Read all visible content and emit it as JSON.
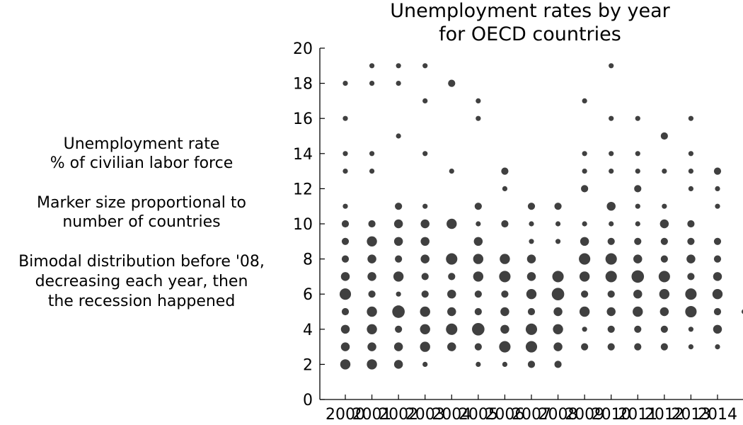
{
  "annotations": {
    "line1": "Unemployment rate",
    "line2": "% of civilian labor force",
    "line3": "Marker size proportional to",
    "line4": "number of countries",
    "line5": "Bimodal distribution before '08,",
    "line6": "decreasing each year, then",
    "line7": "the recession happened"
  },
  "chart_data": {
    "type": "scatter",
    "title_lines": [
      "Unemployment rates by year",
      "for OECD countries"
    ],
    "xlabel": "",
    "ylabel": "",
    "ylim": [
      0,
      20
    ],
    "y_ticks": [
      0,
      2,
      4,
      6,
      8,
      10,
      12,
      14,
      16,
      18,
      20
    ],
    "x_ticks": [
      2000,
      2001,
      2002,
      2003,
      2004,
      2005,
      2006,
      2007,
      2008,
      2009,
      2010,
      2011,
      2012,
      2013,
      2014
    ],
    "grid": false,
    "marker_color": "#404040",
    "size_meaning": "number of countries",
    "points": [
      [
        2000,
        18,
        1
      ],
      [
        2000,
        16,
        1
      ],
      [
        2000,
        14,
        1
      ],
      [
        2000,
        13,
        1
      ],
      [
        2000,
        11,
        1
      ],
      [
        2000,
        10,
        2
      ],
      [
        2000,
        9,
        2
      ],
      [
        2000,
        8,
        2
      ],
      [
        2000,
        7,
        3
      ],
      [
        2000,
        6,
        5
      ],
      [
        2000,
        5,
        2
      ],
      [
        2000,
        4,
        3
      ],
      [
        2000,
        3,
        3
      ],
      [
        2000,
        2,
        4
      ],
      [
        2001,
        19,
        1
      ],
      [
        2001,
        18,
        1
      ],
      [
        2001,
        14,
        1
      ],
      [
        2001,
        13,
        1
      ],
      [
        2001,
        10,
        2
      ],
      [
        2001,
        9,
        4
      ],
      [
        2001,
        8,
        3
      ],
      [
        2001,
        7,
        3
      ],
      [
        2001,
        6,
        2
      ],
      [
        2001,
        5,
        4
      ],
      [
        2001,
        4,
        4
      ],
      [
        2001,
        3,
        3
      ],
      [
        2001,
        2,
        4
      ],
      [
        2002,
        19,
        1
      ],
      [
        2002,
        18,
        1
      ],
      [
        2002,
        15,
        1
      ],
      [
        2002,
        11,
        2
      ],
      [
        2002,
        10,
        3
      ],
      [
        2002,
        9,
        3
      ],
      [
        2002,
        8,
        2
      ],
      [
        2002,
        7,
        4
      ],
      [
        2002,
        6,
        1
      ],
      [
        2002,
        5,
        6
      ],
      [
        2002,
        4,
        2
      ],
      [
        2002,
        3,
        3
      ],
      [
        2002,
        2,
        3
      ],
      [
        2003,
        19,
        1
      ],
      [
        2003,
        17,
        1
      ],
      [
        2003,
        14,
        1
      ],
      [
        2003,
        11,
        1
      ],
      [
        2003,
        10,
        3
      ],
      [
        2003,
        9,
        3
      ],
      [
        2003,
        8,
        3
      ],
      [
        2003,
        7,
        2
      ],
      [
        2003,
        6,
        2
      ],
      [
        2003,
        5,
        4
      ],
      [
        2003,
        4,
        4
      ],
      [
        2003,
        3,
        4
      ],
      [
        2003,
        2,
        1
      ],
      [
        2004,
        18,
        2
      ],
      [
        2004,
        13,
        1
      ],
      [
        2004,
        10,
        4
      ],
      [
        2004,
        8,
        5
      ],
      [
        2004,
        7,
        2
      ],
      [
        2004,
        6,
        3
      ],
      [
        2004,
        5,
        3
      ],
      [
        2004,
        4,
        5
      ],
      [
        2004,
        3,
        3
      ],
      [
        2005,
        17,
        1
      ],
      [
        2005,
        16,
        1
      ],
      [
        2005,
        11,
        2
      ],
      [
        2005,
        10,
        1
      ],
      [
        2005,
        9,
        3
      ],
      [
        2005,
        8,
        4
      ],
      [
        2005,
        7,
        4
      ],
      [
        2005,
        6,
        2
      ],
      [
        2005,
        5,
        2
      ],
      [
        2005,
        4,
        6
      ],
      [
        2005,
        3,
        2
      ],
      [
        2005,
        2,
        1
      ],
      [
        2006,
        13,
        2
      ],
      [
        2006,
        12,
        1
      ],
      [
        2006,
        10,
        2
      ],
      [
        2006,
        8,
        4
      ],
      [
        2006,
        7,
        5
      ],
      [
        2006,
        6,
        2
      ],
      [
        2006,
        5,
        3
      ],
      [
        2006,
        4,
        3
      ],
      [
        2006,
        3,
        5
      ],
      [
        2006,
        2,
        1
      ],
      [
        2007,
        11,
        2
      ],
      [
        2007,
        10,
        1
      ],
      [
        2007,
        9,
        1
      ],
      [
        2007,
        8,
        3
      ],
      [
        2007,
        7,
        3
      ],
      [
        2007,
        6,
        4
      ],
      [
        2007,
        5,
        2
      ],
      [
        2007,
        4,
        5
      ],
      [
        2007,
        3,
        5
      ],
      [
        2007,
        2,
        2
      ],
      [
        2008,
        11,
        2
      ],
      [
        2008,
        10,
        1
      ],
      [
        2008,
        9,
        1
      ],
      [
        2008,
        7,
        5
      ],
      [
        2008,
        6,
        6
      ],
      [
        2008,
        5,
        3
      ],
      [
        2008,
        4,
        4
      ],
      [
        2008,
        3,
        3
      ],
      [
        2008,
        2,
        2
      ],
      [
        2009,
        17,
        1
      ],
      [
        2009,
        14,
        1
      ],
      [
        2009,
        13,
        1
      ],
      [
        2009,
        12,
        2
      ],
      [
        2009,
        10,
        1
      ],
      [
        2009,
        9,
        3
      ],
      [
        2009,
        8,
        5
      ],
      [
        2009,
        7,
        4
      ],
      [
        2009,
        6,
        2
      ],
      [
        2009,
        5,
        4
      ],
      [
        2009,
        4,
        1
      ],
      [
        2009,
        3,
        2
      ],
      [
        2010,
        19,
        1
      ],
      [
        2010,
        16,
        1
      ],
      [
        2010,
        14,
        1
      ],
      [
        2010,
        13,
        1
      ],
      [
        2010,
        11,
        3
      ],
      [
        2010,
        10,
        1
      ],
      [
        2010,
        9,
        2
      ],
      [
        2010,
        8,
        5
      ],
      [
        2010,
        7,
        5
      ],
      [
        2010,
        6,
        2
      ],
      [
        2010,
        5,
        3
      ],
      [
        2010,
        4,
        2
      ],
      [
        2010,
        3,
        2
      ],
      [
        2011,
        16,
        1
      ],
      [
        2011,
        14,
        1
      ],
      [
        2011,
        13,
        1
      ],
      [
        2011,
        12,
        2
      ],
      [
        2011,
        11,
        1
      ],
      [
        2011,
        10,
        1
      ],
      [
        2011,
        9,
        2
      ],
      [
        2011,
        8,
        3
      ],
      [
        2011,
        7,
        6
      ],
      [
        2011,
        6,
        3
      ],
      [
        2011,
        5,
        4
      ],
      [
        2011,
        4,
        2
      ],
      [
        2011,
        3,
        2
      ],
      [
        2012,
        15,
        2
      ],
      [
        2012,
        13,
        1
      ],
      [
        2012,
        11,
        1
      ],
      [
        2012,
        10,
        3
      ],
      [
        2012,
        9,
        2
      ],
      [
        2012,
        8,
        2
      ],
      [
        2012,
        7,
        5
      ],
      [
        2012,
        6,
        4
      ],
      [
        2012,
        5,
        3
      ],
      [
        2012,
        4,
        2
      ],
      [
        2012,
        3,
        2
      ],
      [
        2013,
        16,
        1
      ],
      [
        2013,
        14,
        1
      ],
      [
        2013,
        13,
        1
      ],
      [
        2013,
        12,
        1
      ],
      [
        2013,
        10,
        2
      ],
      [
        2013,
        9,
        2
      ],
      [
        2013,
        8,
        3
      ],
      [
        2013,
        7,
        2
      ],
      [
        2013,
        6,
        5
      ],
      [
        2013,
        5,
        5
      ],
      [
        2013,
        4,
        1
      ],
      [
        2013,
        3,
        1
      ],
      [
        2014,
        13,
        2
      ],
      [
        2014,
        12,
        1
      ],
      [
        2014,
        11,
        1
      ],
      [
        2014,
        9,
        2
      ],
      [
        2014,
        8,
        2
      ],
      [
        2014,
        7,
        3
      ],
      [
        2014,
        6,
        4
      ],
      [
        2014,
        5,
        2
      ],
      [
        2014,
        4,
        3
      ],
      [
        2014,
        3,
        1
      ]
    ]
  }
}
